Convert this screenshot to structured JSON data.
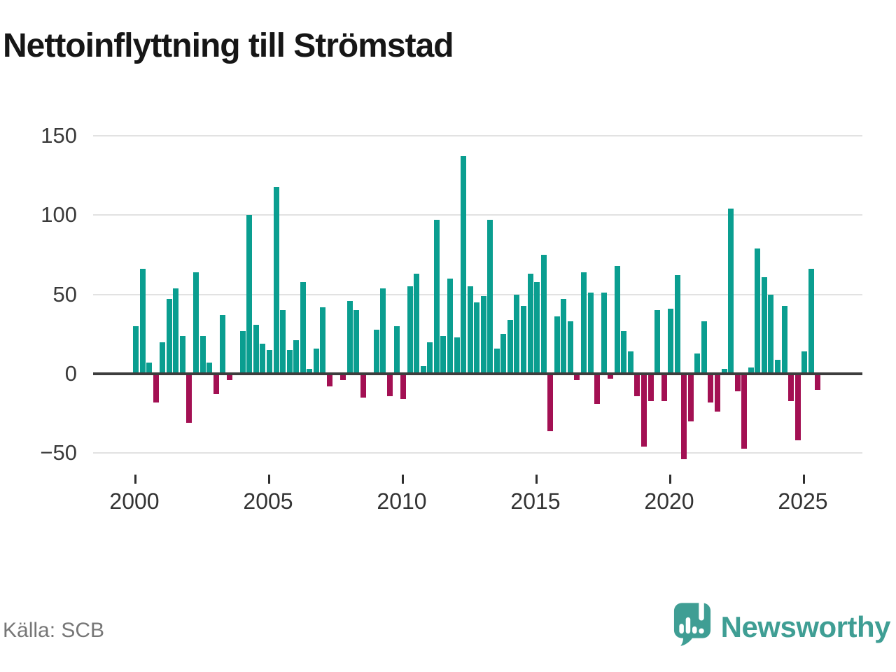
{
  "title": "Nettoinflyttning till Strömstad",
  "source": "Källa: SCB",
  "branding": {
    "name": "Newsworthy",
    "icon": "newsworthy-logo-icon"
  },
  "colors": {
    "positive": "#0a9e90",
    "negative": "#a31053",
    "grid": "#e2e2e2",
    "zero_axis": "#3d3d3d",
    "title_text": "#161616",
    "tick_text": "#3a3a3a",
    "source_text": "#767676",
    "brand": "#3f9e94"
  },
  "chart_data": {
    "type": "bar",
    "title": "Nettoinflyttning till Strömstad",
    "xlabel": "",
    "ylabel": "",
    "grid": "horizontal",
    "legend": "none",
    "y_ticks": [
      150,
      100,
      50,
      0,
      -50
    ],
    "y_tick_labels": [
      "150",
      "100",
      "50",
      "0",
      "−50"
    ],
    "ylim": [
      -62,
      160
    ],
    "x_tick_years": [
      2000,
      2005,
      2010,
      2015,
      2020,
      2025
    ],
    "x_tick_labels": [
      "2000",
      "2005",
      "2010",
      "2015",
      "2020",
      "2025"
    ],
    "frequency": "quarterly",
    "quarters": [
      "2000Q1",
      "2000Q2",
      "2000Q3",
      "2000Q4",
      "2001Q1",
      "2001Q2",
      "2001Q3",
      "2001Q4",
      "2002Q1",
      "2002Q2",
      "2002Q3",
      "2002Q4",
      "2003Q1",
      "2003Q2",
      "2003Q3",
      "2003Q4",
      "2004Q1",
      "2004Q2",
      "2004Q3",
      "2004Q4",
      "2005Q1",
      "2005Q2",
      "2005Q3",
      "2005Q4",
      "2006Q1",
      "2006Q2",
      "2006Q3",
      "2006Q4",
      "2007Q1",
      "2007Q2",
      "2007Q3",
      "2007Q4",
      "2008Q1",
      "2008Q2",
      "2008Q3",
      "2008Q4",
      "2009Q1",
      "2009Q2",
      "2009Q3",
      "2009Q4",
      "2010Q1",
      "2010Q2",
      "2010Q3",
      "2010Q4",
      "2011Q1",
      "2011Q2",
      "2011Q3",
      "2011Q4",
      "2012Q1",
      "2012Q2",
      "2012Q3",
      "2012Q4",
      "2013Q1",
      "2013Q2",
      "2013Q3",
      "2013Q4",
      "2014Q1",
      "2014Q2",
      "2014Q3",
      "2014Q4",
      "2015Q1",
      "2015Q2",
      "2015Q3",
      "2015Q4",
      "2016Q1",
      "2016Q2",
      "2016Q3",
      "2016Q4",
      "2017Q1",
      "2017Q2",
      "2017Q3",
      "2017Q4",
      "2018Q1",
      "2018Q2",
      "2018Q3",
      "2018Q4",
      "2019Q1",
      "2019Q2",
      "2019Q3",
      "2019Q4",
      "2020Q1",
      "2020Q2",
      "2020Q3",
      "2020Q4",
      "2021Q1",
      "2021Q2",
      "2021Q3",
      "2021Q4",
      "2022Q1",
      "2022Q2",
      "2022Q3",
      "2022Q4",
      "2023Q1",
      "2023Q2",
      "2023Q3",
      "2023Q4",
      "2024Q1",
      "2024Q2",
      "2024Q3",
      "2024Q4",
      "2025Q1",
      "2025Q2",
      "2025Q3"
    ],
    "values": [
      30,
      66,
      7,
      -18,
      20,
      47,
      54,
      24,
      -31,
      64,
      24,
      7,
      -13,
      37,
      -4,
      0,
      27,
      100,
      31,
      19,
      15,
      118,
      40,
      15,
      21,
      58,
      3,
      16,
      42,
      -8,
      0,
      -4,
      46,
      40,
      -15,
      0,
      28,
      54,
      -14,
      30,
      -16,
      55,
      63,
      5,
      20,
      97,
      24,
      60,
      23,
      137,
      55,
      45,
      49,
      97,
      16,
      25,
      34,
      50,
      43,
      63,
      58,
      75,
      -36,
      36,
      47,
      33,
      -4,
      64,
      51,
      -19,
      51,
      -3,
      68,
      27,
      14,
      -14,
      -46,
      -17,
      40,
      -17,
      41,
      62,
      -54,
      -30,
      13,
      33,
      -18,
      -24,
      3,
      104,
      -11,
      -47,
      4,
      79,
      61,
      50,
      9,
      43,
      -17,
      -42,
      14,
      66,
      -10
    ]
  }
}
